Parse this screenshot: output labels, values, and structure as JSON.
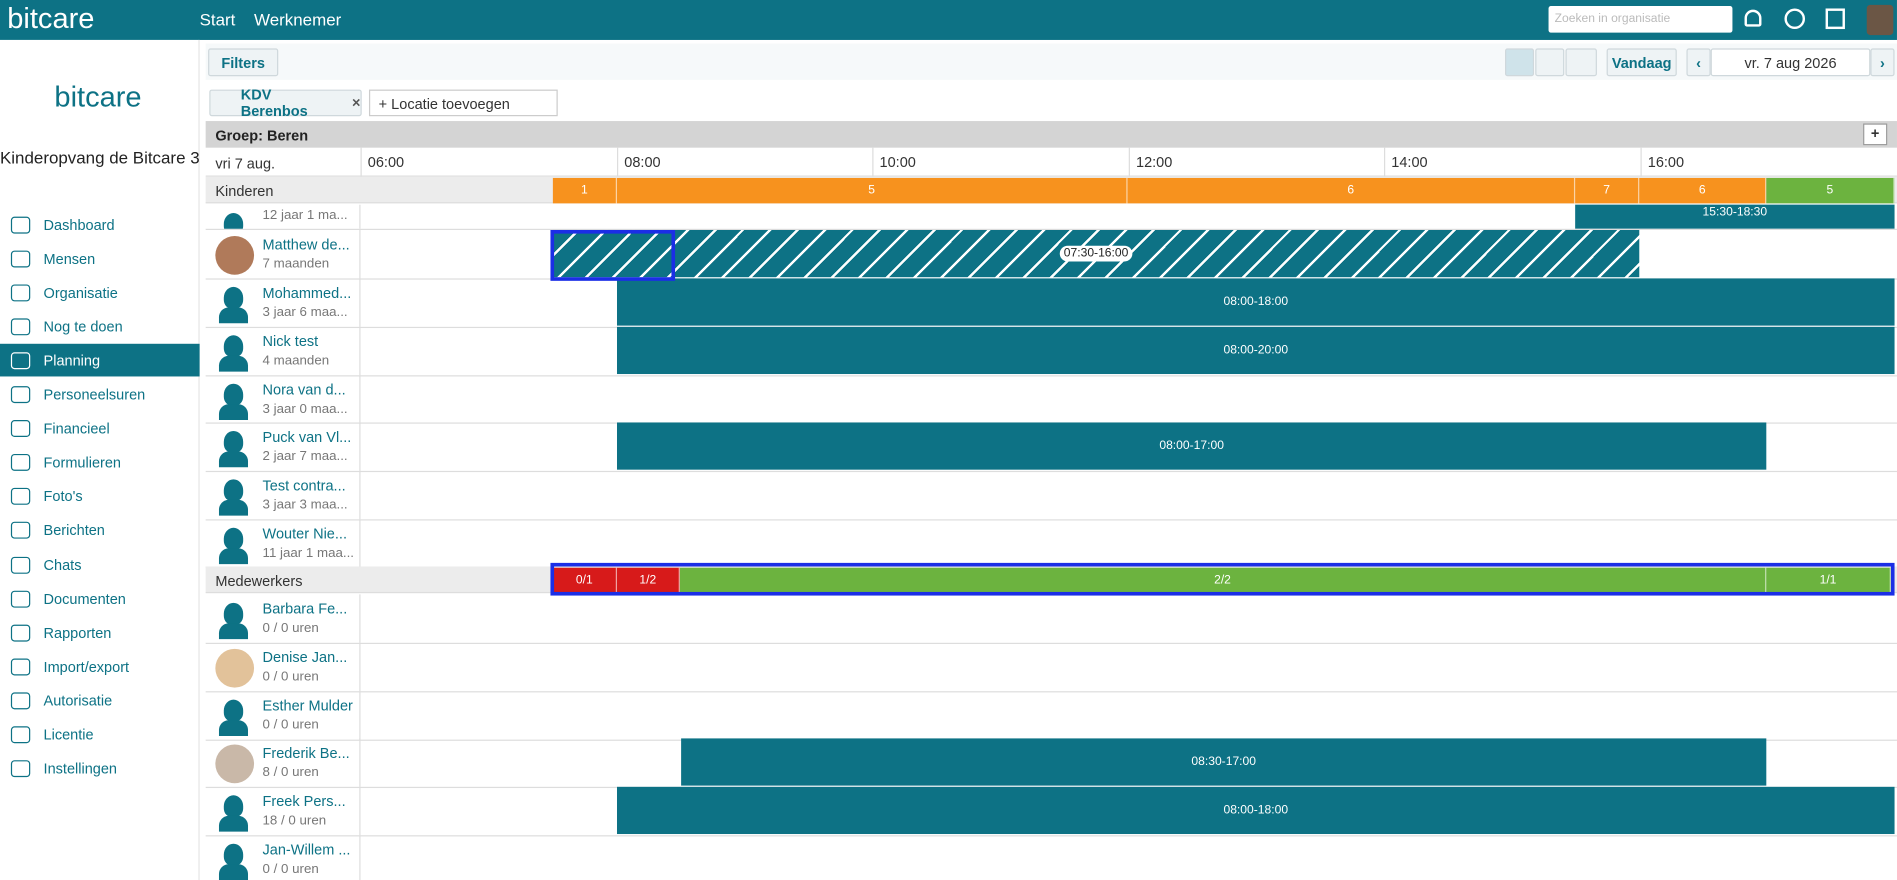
{
  "topbar": {
    "logo": "bitcare",
    "nav": [
      "Start",
      "Werknemer"
    ],
    "search_placeholder": "Zoeken in organisatie"
  },
  "sidebar": {
    "logo": "bitcare",
    "organization": "Kinderopvang de Bitcare 3",
    "menu": [
      "Dashboard",
      "Mensen",
      "Organisatie",
      "Nog te doen",
      "Planning",
      "Personeelsuren",
      "Financieel",
      "Formulieren",
      "Foto's",
      "Berichten",
      "Chats",
      "Documenten",
      "Rapporten",
      "Import/export",
      "Autorisatie",
      "Licentie",
      "Instellingen"
    ]
  },
  "toolbar": {
    "filters": "Filters",
    "today": "Vandaag",
    "date": "vr. 7 aug 2026",
    "location_tag": "KDV Berenbos",
    "add_location": "+ Locatie toevoegen"
  },
  "planning": {
    "group": "Groep: Beren",
    "day": "vri 7 aug.",
    "hours": [
      "06:00",
      "08:00",
      "10:00",
      "12:00",
      "14:00",
      "16:00"
    ],
    "children_label": "Kinderen",
    "children_counts": [
      1,
      5,
      6,
      7,
      6,
      5
    ],
    "children": [
      {
        "age": "12 jaar 1 ma...",
        "times": "15:30-18:30"
      },
      {
        "name": "Matthew de...",
        "age": "7 maanden",
        "times": "07:30-16:00"
      },
      {
        "name": "Mohammed...",
        "age": "3 jaar 6 maa...",
        "times": "08:00-18:00"
      },
      {
        "name": "Nick test",
        "age": "4 maanden",
        "times": "08:00-20:00"
      },
      {
        "name": "Nora van d...",
        "age": "3 jaar 0 maa..."
      },
      {
        "name": "Puck van Vl...",
        "age": "2 jaar 7 maa...",
        "times": "08:00-17:00"
      },
      {
        "name": "Test contra...",
        "age": "3 jaar 3 maa..."
      },
      {
        "name": "Wouter Nie...",
        "age": "11 jaar 1 maa..."
      }
    ],
    "staff_label": "Medewerkers",
    "staff_counts": [
      "0/1",
      "1/2",
      "2/2",
      "1/1"
    ],
    "staff": [
      {
        "name": "Barbara Fe...",
        "hours": "0 / 0 uren"
      },
      {
        "name": "Denise Jan...",
        "hours": "0 / 0 uren"
      },
      {
        "name": "Esther Mulder",
        "hours": "0 / 0 uren"
      },
      {
        "name": "Frederik Be...",
        "hours": "8 / 0 uren",
        "times": "08:30-17:00"
      },
      {
        "name": "Freek Pers...",
        "hours": "18 / 0 uren",
        "times": "08:00-18:00"
      },
      {
        "name": "Jan-Willem ...",
        "hours": "0 / 0 uren"
      }
    ]
  }
}
